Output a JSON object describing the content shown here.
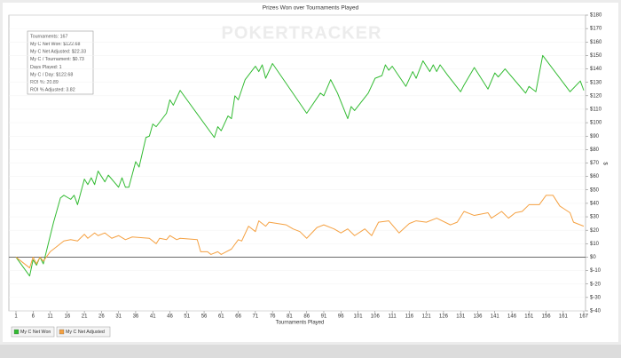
{
  "chart_data": {
    "type": "line",
    "title": "Prizes Won over Tournaments Played",
    "xlabel": "Tournaments Played",
    "ylabel": "$",
    "watermark": "POKERTRACKER",
    "grid": true,
    "legend": "bottom-left",
    "stats_box": [
      "Tournaments: 167",
      "My C Net Won: $122.68",
      "My C Net Adjusted: $22.33",
      "My C / Tournament: $0.73",
      "Days Played: 1",
      "My C / Day: $122.68",
      "ROI %: 20.89",
      "ROI % Adjusted: 3.82"
    ],
    "xlim": [
      1,
      167
    ],
    "xticks": [
      1,
      6,
      11,
      16,
      21,
      26,
      31,
      36,
      41,
      46,
      51,
      56,
      61,
      66,
      71,
      76,
      81,
      86,
      91,
      96,
      101,
      106,
      111,
      116,
      121,
      126,
      131,
      136,
      141,
      146,
      151,
      156,
      161,
      167
    ],
    "ylim": [
      -40,
      180
    ],
    "yticks": [
      {
        "value": -40,
        "label": "$-40"
      },
      {
        "value": -30,
        "label": "$-30"
      },
      {
        "value": -20,
        "label": "$-20"
      },
      {
        "value": -10,
        "label": "$-10"
      },
      {
        "value": 0,
        "label": "$0"
      },
      {
        "value": 10,
        "label": "$10"
      },
      {
        "value": 20,
        "label": "$20"
      },
      {
        "value": 30,
        "label": "$30"
      },
      {
        "value": 40,
        "label": "$40"
      },
      {
        "value": 50,
        "label": "$50"
      },
      {
        "value": 60,
        "label": "$60"
      },
      {
        "value": 70,
        "label": "$70"
      },
      {
        "value": 80,
        "label": "$80"
      },
      {
        "value": 90,
        "label": "$90"
      },
      {
        "value": 100,
        "label": "$100"
      },
      {
        "value": 110,
        "label": "$110"
      },
      {
        "value": 120,
        "label": "$120"
      },
      {
        "value": 130,
        "label": "$130"
      },
      {
        "value": 140,
        "label": "$140"
      },
      {
        "value": 150,
        "label": "$150"
      },
      {
        "value": 160,
        "label": "$160"
      },
      {
        "value": 170,
        "label": "$170"
      },
      {
        "value": 180,
        "label": "$180"
      }
    ],
    "series": [
      {
        "name": "My C Net Won",
        "color": "#33bb33",
        "x": [
          1,
          5,
          6,
          7,
          8,
          9,
          12,
          14,
          15,
          17,
          18,
          19,
          21,
          22,
          23,
          24,
          25,
          27,
          28,
          31,
          32,
          33,
          34,
          36,
          37,
          39,
          40,
          41,
          42,
          45,
          46,
          47,
          49,
          59,
          60,
          61,
          63,
          64,
          65,
          66,
          68,
          71,
          72,
          73,
          74,
          76,
          86,
          90,
          91,
          93,
          95,
          98,
          99,
          100,
          104,
          106,
          108,
          109,
          110,
          111,
          115,
          117,
          118,
          120,
          122,
          123,
          124,
          125,
          127,
          131,
          132,
          135,
          139,
          141,
          142,
          144,
          149,
          150,
          151,
          153,
          155,
          163,
          166,
          167
        ],
        "values": [
          0,
          -14,
          -2,
          -6,
          0,
          -5,
          26,
          44,
          46,
          43,
          46,
          39,
          58,
          54,
          59,
          54,
          64,
          56,
          61,
          52,
          59,
          52,
          52,
          71,
          67,
          89,
          90,
          99,
          97,
          107,
          117,
          113,
          124,
          89,
          97,
          94,
          105,
          103,
          120,
          117,
          132,
          142,
          138,
          143,
          133,
          144,
          107,
          122,
          120,
          132,
          122,
          103,
          112,
          109,
          122,
          133,
          135,
          143,
          139,
          142,
          127,
          138,
          133,
          146,
          138,
          143,
          138,
          143,
          136,
          123,
          128,
          141,
          125,
          137,
          134,
          140,
          125,
          122,
          127,
          123,
          150,
          123,
          131,
          124
        ]
      },
      {
        "name": "My C Net Adjusted",
        "color": "#f5a142",
        "x": [
          1,
          5,
          6,
          7,
          8,
          9,
          11,
          13,
          15,
          17,
          19,
          21,
          22,
          24,
          25,
          27,
          29,
          31,
          33,
          35,
          40,
          42,
          43,
          45,
          46,
          48,
          49,
          54,
          55,
          57,
          58,
          60,
          61,
          64,
          66,
          67,
          69,
          71,
          72,
          74,
          75,
          80,
          82,
          84,
          86,
          89,
          91,
          94,
          96,
          98,
          100,
          103,
          105,
          107,
          110,
          113,
          116,
          118,
          121,
          124,
          128,
          130,
          132,
          135,
          139,
          140,
          143,
          145,
          147,
          149,
          151,
          154,
          156,
          158,
          160,
          163,
          164,
          167
        ],
        "values": [
          0,
          -8,
          0,
          -5,
          0,
          -3,
          4,
          8,
          12,
          13,
          12,
          17,
          14,
          18,
          16,
          18,
          14,
          16,
          13,
          15,
          14,
          10,
          14,
          13,
          16,
          13,
          14,
          13,
          4,
          4,
          2,
          4,
          2,
          6,
          13,
          12,
          23,
          19,
          27,
          23,
          26,
          24,
          21,
          19,
          14,
          22,
          24,
          21,
          18,
          21,
          16,
          21,
          16,
          26,
          27,
          18,
          25,
          27,
          26,
          29,
          24,
          26,
          34,
          31,
          33,
          29,
          34,
          29,
          33,
          34,
          39,
          39,
          46,
          46,
          38,
          33,
          26,
          23
        ]
      }
    ]
  }
}
